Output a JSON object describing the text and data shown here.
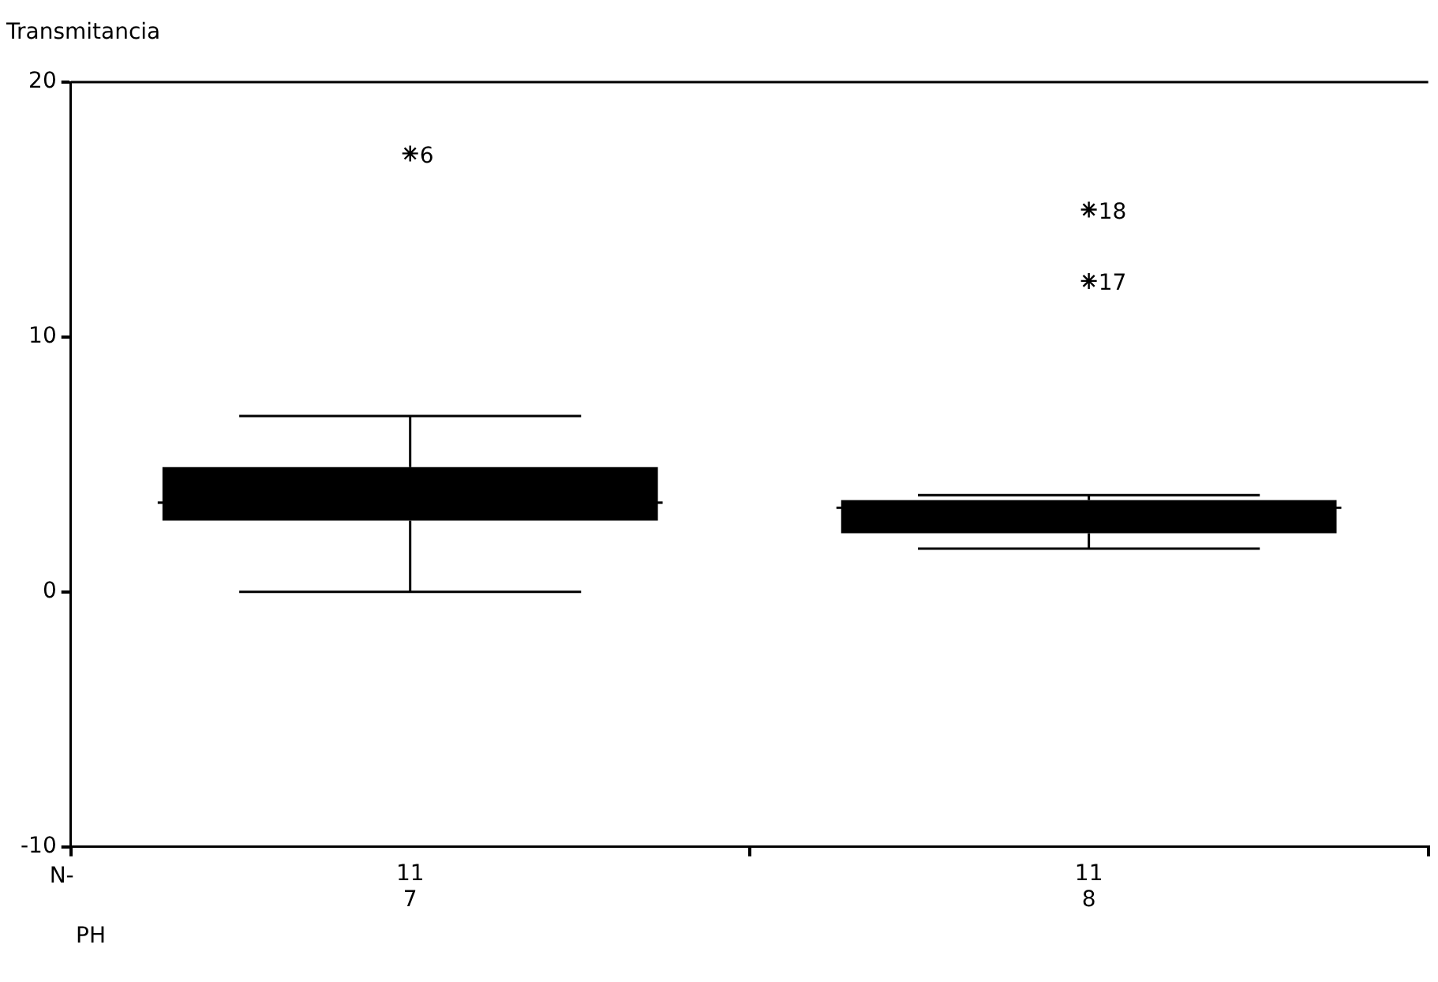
{
  "chart_data": {
    "type": "box",
    "ylabel": "Transmitancia",
    "xlabel": "PH",
    "categories": [
      "7",
      "8"
    ],
    "ylim": [
      -10,
      20
    ],
    "yticks": [
      -10,
      0,
      10,
      20
    ],
    "grid": false,
    "legend": false,
    "marker": "star",
    "series": [
      {
        "color": "#000000",
        "boxes": [
          {
            "low": 0,
            "q1": 2.8,
            "median": 3.5,
            "q3": 4.9,
            "high": 6.9,
            "outliers": [
              17.2
            ]
          },
          {
            "low": 1.7,
            "q1": 2.3,
            "median": 3.3,
            "q3": 3.6,
            "high": 3.8,
            "outliers": [
              15.0,
              12.2
            ]
          }
        ]
      }
    ],
    "annotations": [
      "N-",
      "11",
      "11",
      "6",
      "18",
      "17"
    ]
  }
}
